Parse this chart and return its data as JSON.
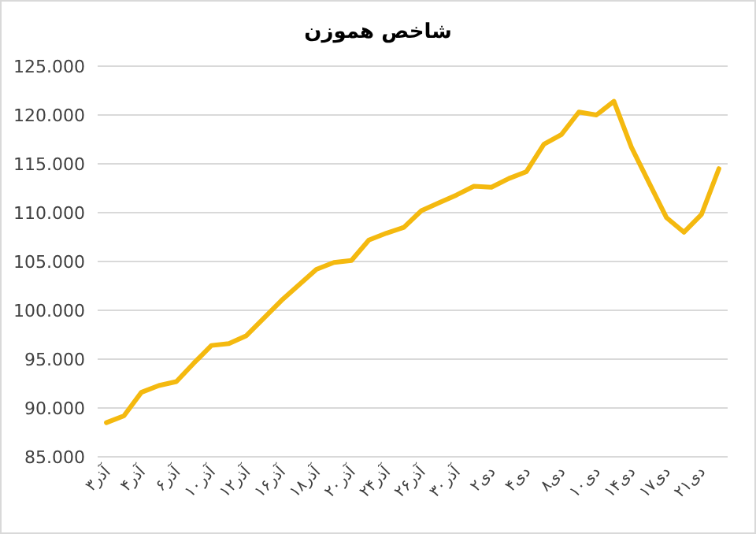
{
  "chart_data": {
    "type": "line",
    "title": "شاخص هموزن",
    "categories": [
      "۳آذر",
      null,
      "۴آذر",
      null,
      "۶آذر",
      null,
      "۱۰آذر",
      null,
      "۱۲آذر",
      null,
      "۱۶آذر",
      null,
      "۱۸آذر",
      null,
      "۲۰آذر",
      null,
      "۲۴آذر",
      null,
      "۲۶آذر",
      null,
      "۳۰آذر",
      null,
      "۲دی",
      null,
      "۴دی",
      null,
      "۸دی",
      null,
      "۱۰دی",
      null,
      "۱۴دی",
      null,
      "۱۷دی",
      null,
      "۲۱دی",
      null
    ],
    "values": [
      88.5,
      89.2,
      91.6,
      92.3,
      92.7,
      94.6,
      96.4,
      96.6,
      97.4,
      99.2,
      101.0,
      102.6,
      104.2,
      104.9,
      105.1,
      107.2,
      107.9,
      108.5,
      110.2,
      111.0,
      111.8,
      112.7,
      112.6,
      113.5,
      114.2,
      117.0,
      118.0,
      120.3,
      120.0,
      121.4,
      116.7,
      113.1,
      109.5,
      108.0,
      109.8,
      114.5
    ],
    "color": "#f4b90f",
    "ylim": [
      85,
      125
    ],
    "yticks": [
      {
        "value": 85,
        "label": "85.000"
      },
      {
        "value": 90,
        "label": "90.000"
      },
      {
        "value": 95,
        "label": "95.000"
      },
      {
        "value": 100,
        "label": "100.000"
      },
      {
        "value": 105,
        "label": "105.000"
      },
      {
        "value": 110,
        "label": "110.000"
      },
      {
        "value": 115,
        "label": "115.000"
      },
      {
        "value": 120,
        "label": "120.000"
      },
      {
        "value": 125,
        "label": "125.000"
      }
    ],
    "grid": "y"
  }
}
